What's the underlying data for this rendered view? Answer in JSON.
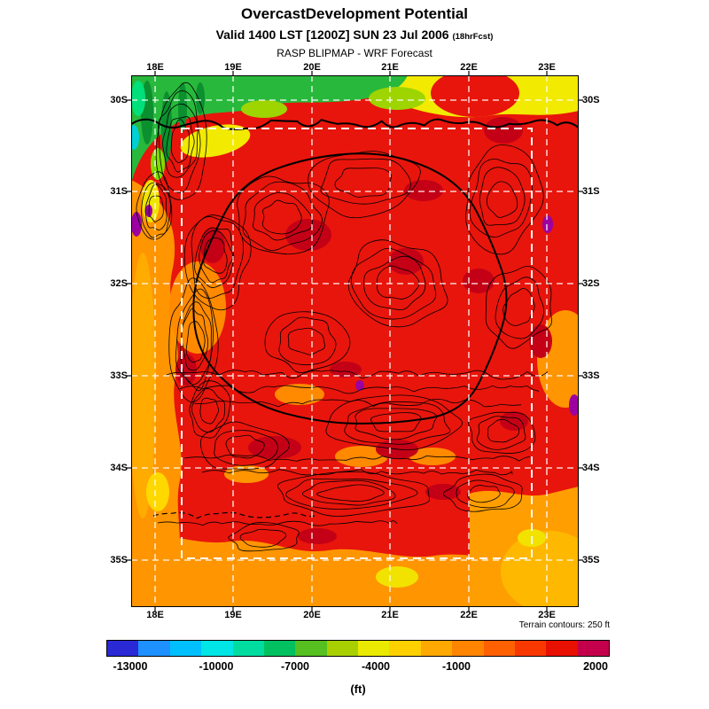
{
  "header": {
    "title": "OvercastDevelopment Potential",
    "valid_line": "Valid 1400 LST [1200Z] SUN 23 Jul 2006",
    "fcst_note": "(18hrFcst)",
    "model_line": "RASP BLIPMAP - WRF Forecast"
  },
  "map": {
    "lon_labels": [
      "18E",
      "19E",
      "20E",
      "21E",
      "22E",
      "23E"
    ],
    "lat_labels": [
      "30S",
      "31S",
      "32S",
      "33S",
      "34S",
      "35S"
    ],
    "terrain_note": "Terrain contours: 250 ft"
  },
  "colorbar": {
    "tick_labels": [
      "-13000",
      "-10000",
      "-7000",
      "-4000",
      "-1000",
      "2000"
    ],
    "unit": "(ft)",
    "colors": [
      "#2929d6",
      "#1e90ff",
      "#00bfff",
      "#00e5e5",
      "#00dca0",
      "#00c060",
      "#55c020",
      "#a8d000",
      "#eaea00",
      "#ffd000",
      "#ffa800",
      "#ff8400",
      "#ff6000",
      "#f93800",
      "#e81000",
      "#c4004c"
    ]
  },
  "chart_data": {
    "type": "heatmap",
    "title": "OvercastDevelopment Potential",
    "subtitle": "Valid 1400 LST [1200Z] SUN 23 Jul 2006 (18hrFcst)",
    "source": "RASP BLIPMAP - WRF Forecast",
    "x_ticks": [
      "18E",
      "19E",
      "20E",
      "21E",
      "22E",
      "23E"
    ],
    "y_ticks": [
      "30S",
      "31S",
      "32S",
      "33S",
      "34S",
      "35S"
    ],
    "colorbar": {
      "ticks": [
        -13000,
        -10000,
        -7000,
        -4000,
        -1000,
        2000
      ],
      "unit": "ft"
    },
    "annotations": [
      "Terrain contours: 250 ft"
    ],
    "overlays": [
      "black terrain contour lines",
      "white dashed lat/lon grid",
      "white dashed inner model domain rectangle"
    ],
    "grid_estimate_ft": {
      "lons_deg_e": [
        18,
        19,
        20,
        21,
        22,
        23
      ],
      "lats_deg_s": [
        30,
        31,
        32,
        33,
        34,
        35
      ],
      "values": [
        [
          -8000,
          -5000,
          -4000,
          1000,
          2000,
          -3500
        ],
        [
          -500,
          2000,
          2000,
          2000,
          2000,
          2000
        ],
        [
          -1000,
          1500,
          2000,
          2000,
          2000,
          2000
        ],
        [
          -500,
          1000,
          2000,
          2000,
          2000,
          1500
        ],
        [
          -1000,
          500,
          2000,
          2000,
          1000,
          -500
        ],
        [
          -500,
          -500,
          1000,
          2000,
          500,
          -1000
        ]
      ]
    },
    "palette_notes": {
      "dominant": "#e8150c",
      "low_band_north_edge": [
        "#28b93c",
        "#f2ea00"
      ],
      "mid_low_west_south": "#ff9500",
      "extreme_spots": "#9c00a0"
    },
    "legend_position": "bottom",
    "grid": true
  }
}
